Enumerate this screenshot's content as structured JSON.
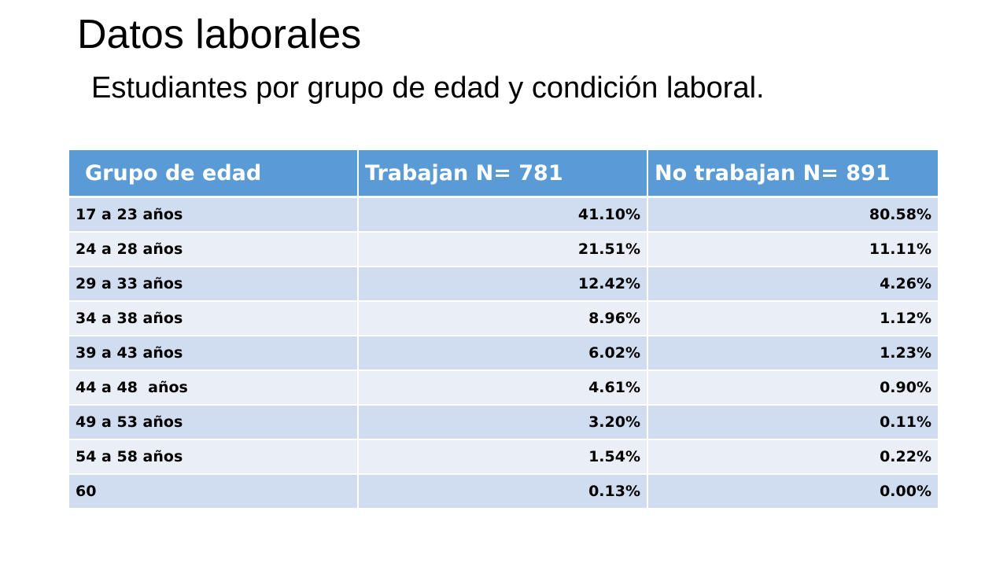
{
  "slide": {
    "title": "Datos laborales",
    "subtitle": "Estudiantes por grupo de edad y condición laboral."
  },
  "table": {
    "headers": [
      "Grupo de edad",
      "Trabajan N= 781",
      "No trabajan N= 891"
    ],
    "rows": [
      {
        "group": "17 a 23 años",
        "trabajan": "41.10%",
        "no_trabajan": "80.58%"
      },
      {
        "group": "24 a 28 años",
        "trabajan": "21.51%",
        "no_trabajan": "11.11%"
      },
      {
        "group": "29 a 33 años",
        "trabajan": "12.42%",
        "no_trabajan": "4.26%"
      },
      {
        "group": "34 a 38 años",
        "trabajan": "8.96%",
        "no_trabajan": "1.12%"
      },
      {
        "group": "39 a 43 años",
        "trabajan": "6.02%",
        "no_trabajan": "1.23%"
      },
      {
        "group": "44 a 48  años",
        "trabajan": "4.61%",
        "no_trabajan": "0.90%"
      },
      {
        "group": "49 a 53 años",
        "trabajan": "3.20%",
        "no_trabajan": "0.11%"
      },
      {
        "group": "54 a 58 años",
        "trabajan": "1.54%",
        "no_trabajan": "0.22%"
      },
      {
        "group": "60",
        "trabajan": "0.13%",
        "no_trabajan": "0.00%"
      }
    ]
  },
  "colors": {
    "header_bg": "#5b9bd5",
    "row_odd": "#d0dcef",
    "row_even": "#e9eef7"
  }
}
